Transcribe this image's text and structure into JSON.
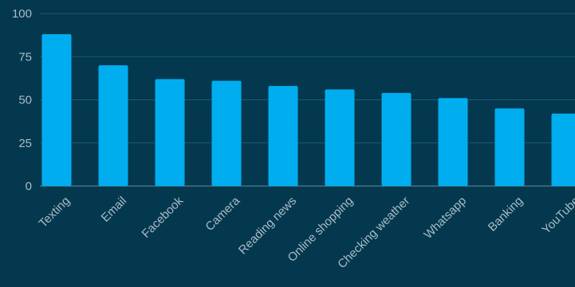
{
  "chart_data": {
    "type": "bar",
    "title": "",
    "xlabel": "",
    "ylabel": "",
    "categories": [
      "Texting",
      "Email",
      "Facebook",
      "Camera",
      "Reading news",
      "Online shopping",
      "Checking weather",
      "Whatsapp",
      "Banking",
      "YouTube"
    ],
    "values": [
      88,
      70,
      62,
      61,
      58,
      56,
      54,
      51,
      45,
      42
    ],
    "ylim": [
      0,
      100
    ],
    "yticks": [
      0,
      25,
      50,
      75,
      100
    ],
    "grid": true,
    "legend": "none",
    "colors": {
      "bar": "#00aeef",
      "background": "#04384f",
      "grid": "#1d5a70",
      "text": "#a9bcc6"
    }
  }
}
